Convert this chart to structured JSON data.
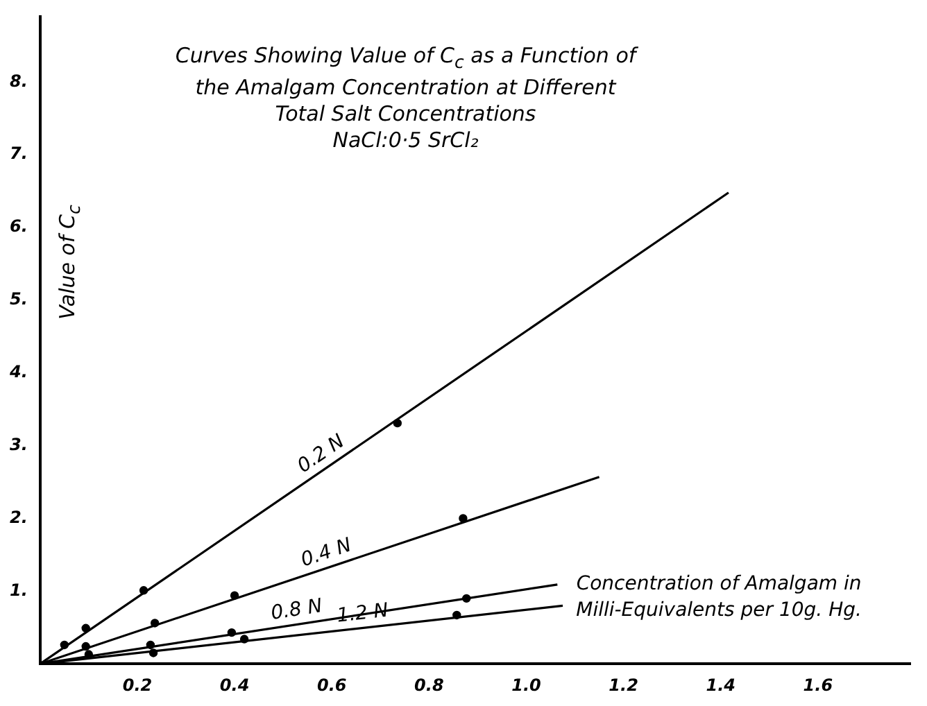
{
  "chart_data": {
    "type": "scatter",
    "title": "Curves Showing Value of C$_{c}$ as a Function of the Amalgam Concentration at Different Total Salt Concentrations",
    "subtitle": "NaCl:0·5 SrCl₂",
    "xlabel": "Concentration of Amalgam in Milli-Equivalents per 10g. Hg.",
    "ylabel": "Value of C$_{c}$",
    "xlim": [
      0,
      1.79
    ],
    "ylim": [
      0,
      8.9
    ],
    "xticks": [
      {
        "value": 0.2,
        "label": "0.2"
      },
      {
        "value": 0.4,
        "label": "0.4"
      },
      {
        "value": 0.6,
        "label": "0.6"
      },
      {
        "value": 0.8,
        "label": "0.8"
      },
      {
        "value": 1,
        "label": "1.0"
      },
      {
        "value": 1.2,
        "label": "1.2"
      },
      {
        "value": 1.4,
        "label": "1.4"
      },
      {
        "value": 1.6,
        "label": "1.6"
      }
    ],
    "yticks": [
      {
        "value": 1,
        "label": "1."
      },
      {
        "value": 2,
        "label": "2."
      },
      {
        "value": 3,
        "label": "3."
      },
      {
        "value": 4,
        "label": "4."
      },
      {
        "value": 5,
        "label": "5."
      },
      {
        "value": 6,
        "label": "6."
      },
      {
        "value": 7,
        "label": "7."
      },
      {
        "value": 8,
        "label": "8."
      }
    ],
    "grid": false,
    "legend": false,
    "series": [
      {
        "type": "line",
        "name": "0.2 N",
        "color": "#000000",
        "marker": "none",
        "x": [
          0,
          1.416
        ],
        "values": [
          0,
          6.48
        ]
      },
      {
        "type": "line",
        "name": "0.4 N",
        "color": "#000000",
        "marker": "none",
        "x": [
          0,
          1.15
        ],
        "values": [
          0,
          2.57
        ]
      },
      {
        "type": "line",
        "name": "0.8 N",
        "color": "#000000",
        "marker": "none",
        "x": [
          0,
          1.064
        ],
        "values": [
          0,
          1.09
        ]
      },
      {
        "type": "line",
        "name": "1.2 N",
        "color": "#000000",
        "marker": "none",
        "x": [
          0,
          1.075
        ],
        "values": [
          0,
          0.8
        ]
      },
      {
        "type": "scatter",
        "color": "#000000",
        "marker": "circle",
        "x": [
          0.05,
          0.094,
          0.213,
          0.735
        ],
        "values": [
          0.26,
          0.49,
          1.01,
          3.31
        ]
      },
      {
        "type": "scatter",
        "color": "#000000",
        "marker": "circle",
        "x": [
          0.094,
          0.236,
          0.4,
          0.87
        ],
        "values": [
          0.24,
          0.56,
          0.94,
          2.0
        ]
      },
      {
        "type": "scatter",
        "color": "#000000",
        "marker": "circle",
        "x": [
          0.1,
          0.227,
          0.394,
          0.877
        ],
        "values": [
          0.13,
          0.26,
          0.43,
          0.9
        ]
      },
      {
        "type": "scatter",
        "color": "#000000",
        "marker": "circle",
        "x": [
          0.233,
          0.42,
          0.857
        ],
        "values": [
          0.15,
          0.34,
          0.67
        ]
      }
    ]
  }
}
